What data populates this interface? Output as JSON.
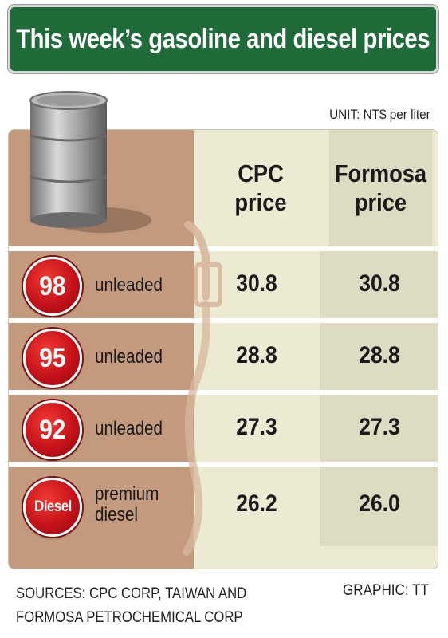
{
  "header": {
    "title": "This week’s gasoline and diesel prices",
    "unit": "UNIT: NT$ per liter"
  },
  "chart_data": {
    "type": "table",
    "title": "This week’s gasoline and diesel prices",
    "unit": "UNIT: NT$ per liter",
    "columns": [
      {
        "line1": "CPC",
        "line2": "price"
      },
      {
        "line1": "Formosa",
        "line2": "price"
      }
    ],
    "rows": [
      {
        "badge": "98",
        "label_line1": "unleaded",
        "label_line2": "",
        "cpc": "30.8",
        "formosa": "30.8"
      },
      {
        "badge": "95",
        "label_line1": "unleaded",
        "label_line2": "",
        "cpc": "28.8",
        "formosa": "28.8"
      },
      {
        "badge": "92",
        "label_line1": "unleaded",
        "label_line2": "",
        "cpc": "27.3",
        "formosa": "27.3"
      },
      {
        "badge": "Diesel",
        "label_line1": "premium",
        "label_line2": "diesel",
        "cpc": "26.2",
        "formosa": "26.0"
      }
    ]
  },
  "footer": {
    "sources_line1": "SOURCES: CPC CORP, TAIWAN AND",
    "sources_line2": "FORMOSA PETROCHEMICAL CORP",
    "graphic": "GRAPHIC: TT"
  },
  "colors": {
    "title_green": "#1f6b3a",
    "badge_red": "#c5121a",
    "label_tan": "#c49a7e",
    "cpc_column": "#ecead2",
    "formosa_column": "#dddbc1"
  },
  "icons": [
    "oil-barrel-icon",
    "fuel-pump-nozzle-icon"
  ]
}
